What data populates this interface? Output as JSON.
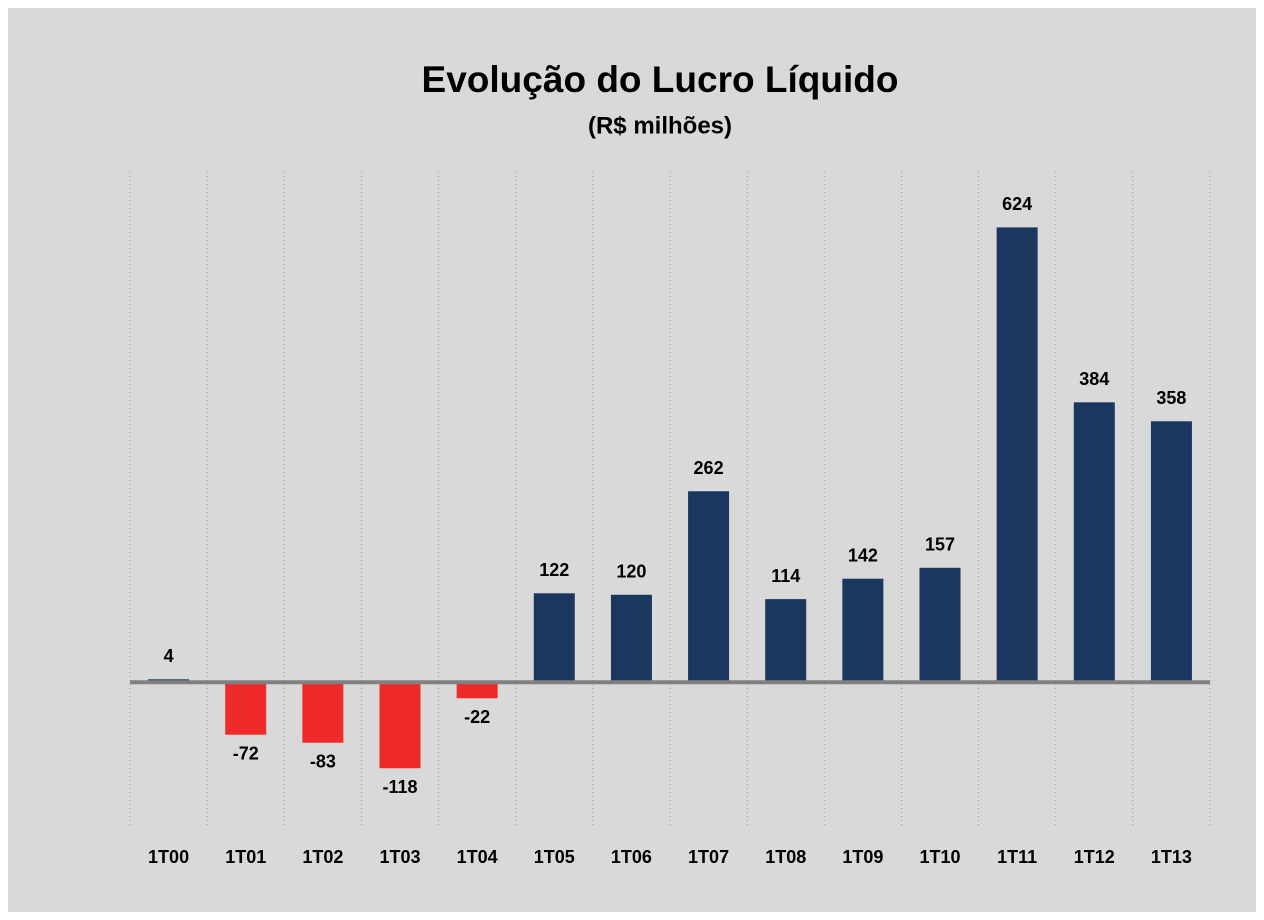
{
  "chart_data": {
    "type": "bar",
    "title": "Evolução do Lucro Líquido",
    "subtitle": "(R$ milhões)",
    "categories": [
      "1T00",
      "1T01",
      "1T02",
      "1T03",
      "1T04",
      "1T05",
      "1T06",
      "1T07",
      "1T08",
      "1T09",
      "1T10",
      "1T11",
      "1T12",
      "1T13"
    ],
    "values": [
      4,
      -72,
      -83,
      -118,
      -22,
      122,
      120,
      262,
      114,
      142,
      157,
      624,
      384,
      358
    ],
    "color": "#1b365f",
    "negative_color": "#ee2a2a",
    "ylim": [
      -200,
      700
    ]
  }
}
